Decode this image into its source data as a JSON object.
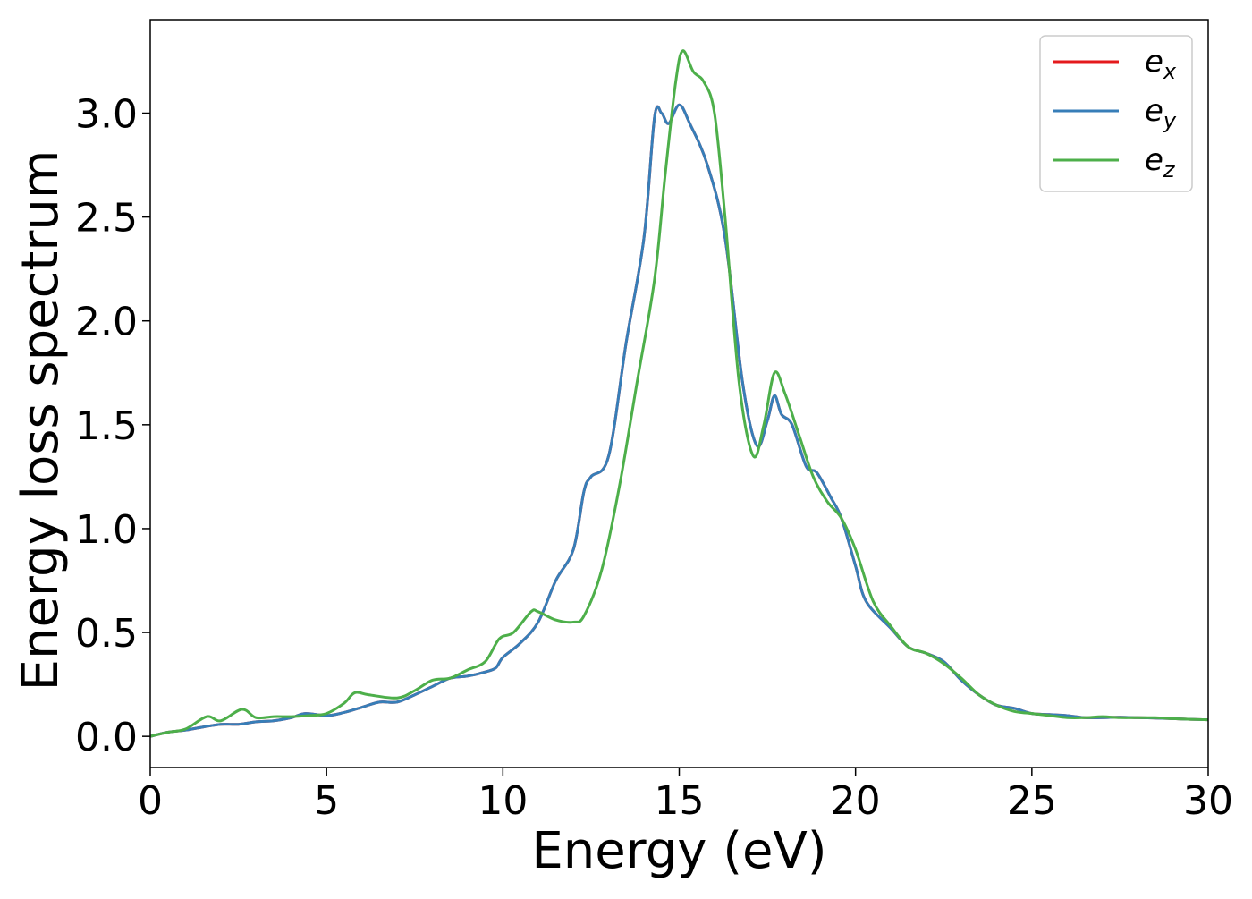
{
  "chart_data": {
    "type": "line",
    "title": "",
    "xlabel": "Energy (eV)",
    "ylabel": "Energy loss spectrum",
    "xlim": [
      0,
      30
    ],
    "ylim": [
      -0.15,
      3.45
    ],
    "xticks": [
      0,
      5,
      10,
      15,
      20,
      25,
      30
    ],
    "xtick_labels": [
      "0",
      "5",
      "10",
      "15",
      "20",
      "25",
      "30"
    ],
    "yticks": [
      0.0,
      0.5,
      1.0,
      1.5,
      2.0,
      2.5,
      3.0
    ],
    "ytick_labels": [
      "0.0",
      "0.5",
      "1.0",
      "1.5",
      "2.0",
      "2.5",
      "3.0"
    ],
    "grid": false,
    "legend": {
      "position": "top-right"
    },
    "series": [
      {
        "name": "e",
        "subscript": "x",
        "color": "#e41a1c",
        "points": [
          [
            0,
            0
          ],
          [
            0.5,
            0.02
          ],
          [
            1,
            0.03
          ],
          [
            1.5,
            0.045
          ],
          [
            2,
            0.058
          ],
          [
            2.5,
            0.058
          ],
          [
            3,
            0.07
          ],
          [
            3.5,
            0.075
          ],
          [
            4,
            0.09
          ],
          [
            4.4,
            0.11
          ],
          [
            5,
            0.1
          ],
          [
            5.5,
            0.115
          ],
          [
            6,
            0.14
          ],
          [
            6.5,
            0.165
          ],
          [
            7,
            0.165
          ],
          [
            7.5,
            0.2
          ],
          [
            8,
            0.24
          ],
          [
            8.5,
            0.28
          ],
          [
            9,
            0.29
          ],
          [
            9.5,
            0.31
          ],
          [
            9.8,
            0.33
          ],
          [
            10,
            0.38
          ],
          [
            10.5,
            0.45
          ],
          [
            11,
            0.55
          ],
          [
            11.5,
            0.75
          ],
          [
            12,
            0.9
          ],
          [
            12.3,
            1.18
          ],
          [
            12.5,
            1.25
          ],
          [
            13,
            1.35
          ],
          [
            13.5,
            1.9
          ],
          [
            14,
            2.4
          ],
          [
            14.3,
            2.98
          ],
          [
            14.5,
            3.0
          ],
          [
            14.7,
            2.95
          ],
          [
            15,
            3.04
          ],
          [
            15.3,
            2.95
          ],
          [
            15.8,
            2.75
          ],
          [
            16.3,
            2.4
          ],
          [
            16.8,
            1.7
          ],
          [
            17.2,
            1.4
          ],
          [
            17.5,
            1.52
          ],
          [
            17.7,
            1.64
          ],
          [
            17.9,
            1.55
          ],
          [
            18.2,
            1.5
          ],
          [
            18.6,
            1.3
          ],
          [
            18.9,
            1.27
          ],
          [
            19.3,
            1.15
          ],
          [
            19.6,
            1.05
          ],
          [
            20,
            0.82
          ],
          [
            20.3,
            0.65
          ],
          [
            21,
            0.52
          ],
          [
            21.5,
            0.43
          ],
          [
            22,
            0.4
          ],
          [
            22.5,
            0.36
          ],
          [
            23,
            0.27
          ],
          [
            23.5,
            0.2
          ],
          [
            24,
            0.15
          ],
          [
            24.5,
            0.135
          ],
          [
            25,
            0.11
          ],
          [
            25.5,
            0.105
          ],
          [
            26,
            0.1
          ],
          [
            26.5,
            0.09
          ],
          [
            27,
            0.09
          ],
          [
            27.5,
            0.092
          ],
          [
            28,
            0.09
          ],
          [
            28.5,
            0.088
          ],
          [
            29,
            0.085
          ],
          [
            29.5,
            0.082
          ],
          [
            30,
            0.08
          ]
        ]
      },
      {
        "name": "e",
        "subscript": "y",
        "color": "#377eb8",
        "points": [
          [
            0,
            0
          ],
          [
            0.5,
            0.02
          ],
          [
            1,
            0.03
          ],
          [
            1.5,
            0.045
          ],
          [
            2,
            0.058
          ],
          [
            2.5,
            0.058
          ],
          [
            3,
            0.07
          ],
          [
            3.5,
            0.075
          ],
          [
            4,
            0.09
          ],
          [
            4.4,
            0.11
          ],
          [
            5,
            0.1
          ],
          [
            5.5,
            0.115
          ],
          [
            6,
            0.14
          ],
          [
            6.5,
            0.165
          ],
          [
            7,
            0.165
          ],
          [
            7.5,
            0.2
          ],
          [
            8,
            0.24
          ],
          [
            8.5,
            0.28
          ],
          [
            9,
            0.29
          ],
          [
            9.5,
            0.31
          ],
          [
            9.8,
            0.33
          ],
          [
            10,
            0.38
          ],
          [
            10.5,
            0.45
          ],
          [
            11,
            0.55
          ],
          [
            11.5,
            0.75
          ],
          [
            12,
            0.9
          ],
          [
            12.3,
            1.18
          ],
          [
            12.5,
            1.25
          ],
          [
            13,
            1.35
          ],
          [
            13.5,
            1.9
          ],
          [
            14,
            2.4
          ],
          [
            14.3,
            2.98
          ],
          [
            14.5,
            3.0
          ],
          [
            14.7,
            2.95
          ],
          [
            15,
            3.04
          ],
          [
            15.3,
            2.95
          ],
          [
            15.8,
            2.75
          ],
          [
            16.3,
            2.4
          ],
          [
            16.8,
            1.7
          ],
          [
            17.2,
            1.4
          ],
          [
            17.5,
            1.52
          ],
          [
            17.7,
            1.64
          ],
          [
            17.9,
            1.55
          ],
          [
            18.2,
            1.5
          ],
          [
            18.6,
            1.3
          ],
          [
            18.9,
            1.27
          ],
          [
            19.3,
            1.15
          ],
          [
            19.6,
            1.05
          ],
          [
            20,
            0.82
          ],
          [
            20.3,
            0.65
          ],
          [
            21,
            0.52
          ],
          [
            21.5,
            0.43
          ],
          [
            22,
            0.4
          ],
          [
            22.5,
            0.36
          ],
          [
            23,
            0.27
          ],
          [
            23.5,
            0.2
          ],
          [
            24,
            0.15
          ],
          [
            24.5,
            0.135
          ],
          [
            25,
            0.11
          ],
          [
            25.5,
            0.105
          ],
          [
            26,
            0.1
          ],
          [
            26.5,
            0.09
          ],
          [
            27,
            0.09
          ],
          [
            27.5,
            0.092
          ],
          [
            28,
            0.09
          ],
          [
            28.5,
            0.088
          ],
          [
            29,
            0.085
          ],
          [
            29.5,
            0.082
          ],
          [
            30,
            0.08
          ]
        ]
      },
      {
        "name": "e",
        "subscript": "z",
        "color": "#4daf4a",
        "points": [
          [
            0,
            0
          ],
          [
            0.5,
            0.02
          ],
          [
            1,
            0.035
          ],
          [
            1.6,
            0.095
          ],
          [
            2,
            0.075
          ],
          [
            2.6,
            0.13
          ],
          [
            3,
            0.09
          ],
          [
            3.5,
            0.095
          ],
          [
            4,
            0.095
          ],
          [
            4.5,
            0.1
          ],
          [
            5,
            0.11
          ],
          [
            5.5,
            0.16
          ],
          [
            5.8,
            0.21
          ],
          [
            6.2,
            0.2
          ],
          [
            7,
            0.185
          ],
          [
            7.5,
            0.22
          ],
          [
            8,
            0.27
          ],
          [
            8.5,
            0.28
          ],
          [
            9,
            0.32
          ],
          [
            9.5,
            0.36
          ],
          [
            9.9,
            0.47
          ],
          [
            10.3,
            0.5
          ],
          [
            10.8,
            0.6
          ],
          [
            11,
            0.6
          ],
          [
            11.5,
            0.56
          ],
          [
            12,
            0.55
          ],
          [
            12.3,
            0.58
          ],
          [
            12.8,
            0.8
          ],
          [
            13.3,
            1.2
          ],
          [
            13.8,
            1.7
          ],
          [
            14.3,
            2.2
          ],
          [
            14.6,
            2.7
          ],
          [
            14.9,
            3.15
          ],
          [
            15.1,
            3.3
          ],
          [
            15.4,
            3.2
          ],
          [
            15.7,
            3.15
          ],
          [
            16,
            3.0
          ],
          [
            16.3,
            2.5
          ],
          [
            16.7,
            1.7
          ],
          [
            17.1,
            1.35
          ],
          [
            17.4,
            1.5
          ],
          [
            17.7,
            1.75
          ],
          [
            18,
            1.65
          ],
          [
            18.4,
            1.45
          ],
          [
            18.8,
            1.25
          ],
          [
            19.2,
            1.13
          ],
          [
            19.6,
            1.05
          ],
          [
            20,
            0.9
          ],
          [
            20.5,
            0.65
          ],
          [
            21,
            0.53
          ],
          [
            21.5,
            0.43
          ],
          [
            22,
            0.4
          ],
          [
            22.5,
            0.35
          ],
          [
            23,
            0.28
          ],
          [
            23.5,
            0.2
          ],
          [
            24,
            0.15
          ],
          [
            24.5,
            0.12
          ],
          [
            25,
            0.11
          ],
          [
            25.5,
            0.1
          ],
          [
            26,
            0.09
          ],
          [
            26.5,
            0.09
          ],
          [
            27,
            0.095
          ],
          [
            27.5,
            0.09
          ],
          [
            28,
            0.09
          ],
          [
            28.5,
            0.09
          ],
          [
            29,
            0.085
          ],
          [
            29.5,
            0.082
          ],
          [
            30,
            0.08
          ]
        ]
      }
    ]
  }
}
